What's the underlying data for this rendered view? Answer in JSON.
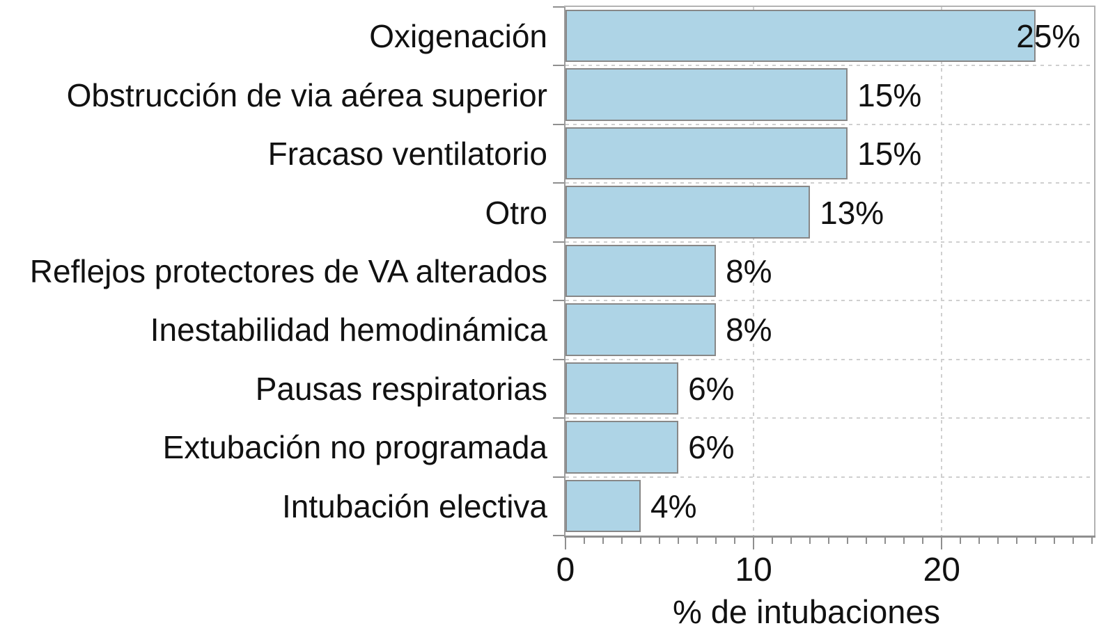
{
  "chart_data": {
    "type": "bar",
    "orientation": "horizontal",
    "title": "",
    "xlabel": "% de intubaciones",
    "categories": [
      "Oxigenación",
      "Obstrucción de via aérea superior",
      "Fracaso ventilatorio",
      "Otro",
      "Reflejos protectores de VA alterados",
      "Inestabilidad hemodinámica",
      "Pausas respiratorias",
      "Extubación no programada",
      "Intubación electiva"
    ],
    "values": [
      25,
      15,
      15,
      13,
      8,
      8,
      6,
      6,
      4
    ],
    "value_labels": [
      "25%",
      "15%",
      "15%",
      "13%",
      "8%",
      "8%",
      "6%",
      "6%",
      "4%"
    ],
    "xlim": [
      0,
      28.1
    ],
    "xticks": [
      0,
      10,
      20
    ],
    "xtick_labels": [
      "0",
      "10",
      "20"
    ],
    "minor_tick_step": 1,
    "grid": {
      "vertical_at_values": [
        10,
        20
      ],
      "horizontal_row_boundaries": true,
      "style": "dashed"
    },
    "legend": "none",
    "colors": {
      "bar_fill": "#aed4e6",
      "bar_border": "#878787",
      "grid": "#cfcfcf",
      "spine": "#b2b2b2",
      "axis": "#8f8f8f",
      "text": "#111111",
      "background": "#ffffff"
    }
  }
}
